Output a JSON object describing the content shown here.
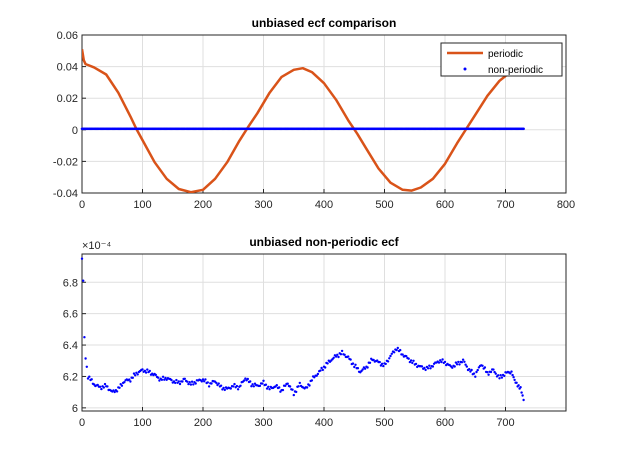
{
  "chart_data": [
    {
      "type": "line",
      "title": "unbiased ecf comparison",
      "xlabel": "",
      "ylabel": "",
      "xlim": [
        0,
        800
      ],
      "ylim": [
        -0.04,
        0.06
      ],
      "xticks": [
        "0",
        "100",
        "200",
        "300",
        "400",
        "500",
        "600",
        "700",
        "800"
      ],
      "yticks": [
        "-0.04",
        "-0.02",
        "0",
        "0.02",
        "0.04",
        "0.06"
      ],
      "grid": true,
      "legend_position": "top-right",
      "series": [
        {
          "name": "periodic",
          "style": "line",
          "color": "#D95319",
          "x": [
            0,
            3,
            6,
            10,
            20,
            40,
            60,
            80,
            90,
            100,
            120,
            140,
            160,
            180,
            200,
            220,
            240,
            260,
            275,
            290,
            310,
            330,
            350,
            365,
            380,
            400,
            420,
            440,
            455,
            470,
            490,
            510,
            530,
            545,
            560,
            580,
            600,
            620,
            635,
            650,
            670,
            690,
            710,
            725
          ],
          "y": [
            0.051,
            0.044,
            0.0415,
            0.041,
            0.0395,
            0.035,
            0.0235,
            0.0085,
            0.0005,
            -0.0065,
            -0.0205,
            -0.031,
            -0.0375,
            -0.0395,
            -0.038,
            -0.031,
            -0.0205,
            -0.007,
            0.002,
            0.0105,
            0.0235,
            0.0335,
            0.038,
            0.039,
            0.0365,
            0.0295,
            0.019,
            0.006,
            -0.0025,
            -0.012,
            -0.0245,
            -0.0335,
            -0.038,
            -0.0385,
            -0.0365,
            -0.031,
            -0.0215,
            -0.0085,
            0.0005,
            0.0095,
            0.0215,
            0.031,
            0.037,
            0.0405
          ]
        },
        {
          "name": "non-periodic",
          "style": "dots",
          "color": "#0000FF",
          "x_range": [
            0,
            730
          ],
          "value": 0.00062
        }
      ]
    },
    {
      "type": "scatter",
      "title": "unbiased non-periodic ecf",
      "xlabel": "",
      "ylabel": "",
      "exponent_label": "×10⁻⁴",
      "xlim": [
        0,
        800
      ],
      "ylim": [
        5.98,
        6.98
      ],
      "xticks": [
        "0",
        "100",
        "200",
        "300",
        "400",
        "500",
        "600",
        "700"
      ],
      "yticks": [
        "6",
        "6.2",
        "6.4",
        "6.6",
        "6.8"
      ],
      "grid": true,
      "series": [
        {
          "name": "non-periodic",
          "color": "#0000FF",
          "x": [
            0,
            2,
            4,
            6,
            10,
            20,
            30,
            40,
            50,
            60,
            70,
            80,
            90,
            100,
            110,
            120,
            130,
            140,
            150,
            160,
            170,
            180,
            190,
            200,
            210,
            220,
            230,
            240,
            250,
            260,
            270,
            280,
            290,
            300,
            310,
            320,
            330,
            340,
            350,
            360,
            370,
            380,
            390,
            400,
            410,
            420,
            430,
            440,
            450,
            460,
            470,
            480,
            490,
            500,
            510,
            520,
            530,
            540,
            550,
            560,
            570,
            580,
            590,
            600,
            610,
            620,
            630,
            640,
            650,
            660,
            670,
            680,
            690,
            700,
            710,
            715,
            720,
            725,
            730
          ],
          "y": [
            6.95,
            6.81,
            6.45,
            6.32,
            6.2,
            6.15,
            6.13,
            6.14,
            6.1,
            6.12,
            6.17,
            6.18,
            6.22,
            6.24,
            6.23,
            6.21,
            6.18,
            6.19,
            6.17,
            6.16,
            6.18,
            6.15,
            6.17,
            6.18,
            6.15,
            6.17,
            6.13,
            6.12,
            6.14,
            6.13,
            6.19,
            6.15,
            6.14,
            6.16,
            6.12,
            6.14,
            6.11,
            6.16,
            6.09,
            6.15,
            6.12,
            6.18,
            6.22,
            6.26,
            6.3,
            6.33,
            6.35,
            6.32,
            6.27,
            6.23,
            6.26,
            6.31,
            6.29,
            6.27,
            6.33,
            6.38,
            6.34,
            6.31,
            6.28,
            6.26,
            6.25,
            6.27,
            6.3,
            6.29,
            6.26,
            6.28,
            6.3,
            6.24,
            6.21,
            6.28,
            6.22,
            6.24,
            6.19,
            6.22,
            6.23,
            6.17,
            6.15,
            6.12,
            6.05
          ]
        }
      ]
    }
  ]
}
